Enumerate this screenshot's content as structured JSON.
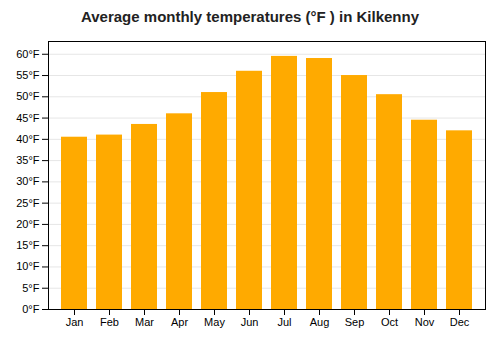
{
  "chart_data": {
    "type": "bar",
    "title": "Average monthly temperatures (°F ) in Kilkenny",
    "categories": [
      "Jan",
      "Feb",
      "Mar",
      "Apr",
      "May",
      "Jun",
      "Jul",
      "Aug",
      "Sep",
      "Oct",
      "Nov",
      "Dec"
    ],
    "values": [
      40.5,
      41.0,
      43.5,
      46.0,
      51.0,
      56.0,
      59.5,
      59.0,
      55.0,
      50.5,
      44.5,
      42.0
    ],
    "color": "#FFAA00",
    "ylim": [
      0,
      63
    ],
    "yticks": [
      {
        "value": 0,
        "label": "0°F"
      },
      {
        "value": 5,
        "label": "5°F"
      },
      {
        "value": 10,
        "label": "10°F"
      },
      {
        "value": 15,
        "label": "15°F"
      },
      {
        "value": 20,
        "label": "20°F"
      },
      {
        "value": 25,
        "label": "25°F"
      },
      {
        "value": 30,
        "label": "30°F"
      },
      {
        "value": 35,
        "label": "35°F"
      },
      {
        "value": 40,
        "label": "40°F"
      },
      {
        "value": 45,
        "label": "45°F"
      },
      {
        "value": 50,
        "label": "50°F"
      },
      {
        "value": 55,
        "label": "55°F"
      },
      {
        "value": 60,
        "label": "60°F"
      }
    ],
    "grid": true
  }
}
